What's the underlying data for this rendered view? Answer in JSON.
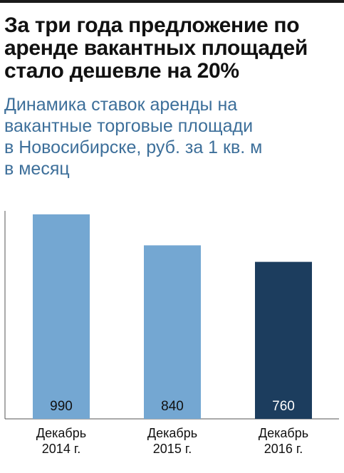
{
  "title_lines": [
    "За три года предложение по",
    "аренде вакантных площадей",
    "стало дешевле на 20%"
  ],
  "subtitle_lines": [
    "Динамика ставок аренды на",
    "вакантные торговые площади",
    "в Новосибирске, руб. за 1 кв. м",
    "в месяц"
  ],
  "colors": {
    "bar": "#74a7d2",
    "bar_highlight": "#1c3d5e",
    "subtitle": "#3d6f9a",
    "axis": "#555555"
  },
  "chart_data": {
    "type": "bar",
    "title": "За три года предложение по аренде вакантных площадей стало дешевле на 20%",
    "subtitle": "Динамика ставок аренды на вакантные торговые площади в Новосибирске, руб. за 1 кв. м в месяц",
    "categories": [
      [
        "Декабрь",
        "2014 г."
      ],
      [
        "Декабрь",
        "2015 г."
      ],
      [
        "Декабрь",
        "2016 г."
      ]
    ],
    "values": [
      990,
      840,
      760
    ],
    "data_labels": [
      "990",
      "840",
      "760"
    ],
    "highlighted_index": 2,
    "ylim": [
      0,
      1000
    ],
    "grid": false,
    "legend": "none"
  }
}
